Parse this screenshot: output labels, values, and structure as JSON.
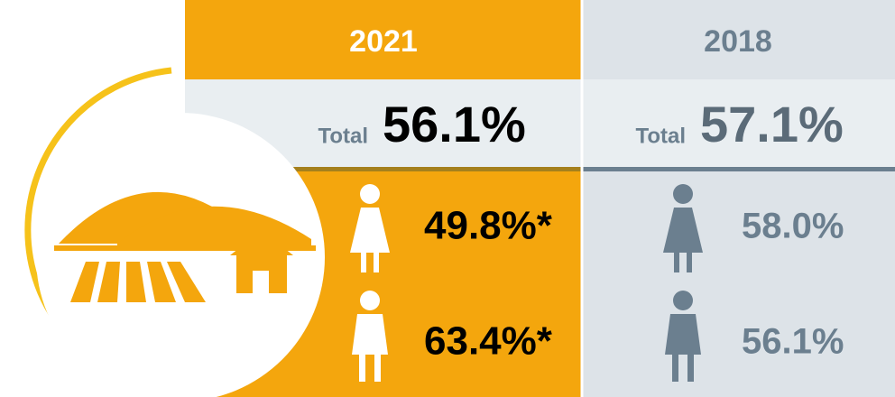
{
  "columns": [
    {
      "year": "2021",
      "total_label": "Total",
      "total": "56.1%",
      "female": "49.8%*",
      "male": "63.4%*"
    },
    {
      "year": "2018",
      "total_label": "Total",
      "total": "57.1%",
      "female": "58.0%",
      "male": "56.1%"
    }
  ]
}
